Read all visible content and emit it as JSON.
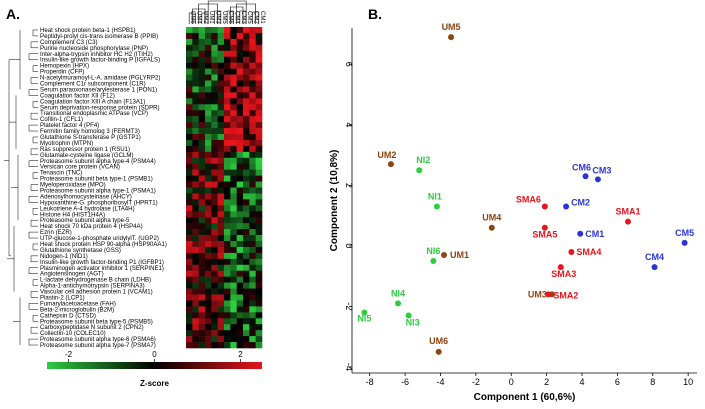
{
  "panel_a_label": "A.",
  "panel_b_label": "B.",
  "chart_data": [
    {
      "type": "heatmap",
      "panel": "A",
      "columns": [
        "UM6",
        "UM4",
        "UM2",
        "UM1",
        "UM3",
        "UM5",
        "CM6",
        "CM4",
        "CM3",
        "CM5",
        "CM2",
        "CM1"
      ],
      "rows": [
        "Heat shock protein beta-1 (HSPB1)",
        "Peptidyl-prolyl cis-trans isomerase B (PPIB)",
        "Complement C3 (C3)",
        "Purine nucleoside phosphorylase (PNP)",
        "Inter-alpha-trypsin inhibitor HC H2 (ITIH2)",
        "Insulin-like growth factor-binding P (IGFALS)",
        "Hemopexin (HPX)",
        "Properdin (CFP)",
        "N-acetylmuramoyl-L-A. amidase (PGLYRP2)",
        "Complement C1r subcomponent (C1R)",
        "Serum paraoxonase/arylesterase 1 (PON1)",
        "Coagulation factor XII (F12)",
        "Coagulation factor XIII A chain (F13A1)",
        "Serum deprivation-response protein (SDPR)",
        "Transitional endoplasmic ATPase (VCP)",
        "Cofilin-1 (CFL1)",
        "Platelet factor 4 (PF4)",
        "Fermitin family homolog 3 (FERMT3)",
        "Glutathione S-transferase P (GSTP1)",
        "Myotrophin (MTPN)",
        "Ras suppressor protein 1 (RSU1)",
        "Glutamate-cysteine ligase (GCLM)",
        "Proteasome subunit alpha type-4 (PSMA4)",
        "Versican core protein (VCAN)",
        "Tenascin (TNC)",
        "Proteasome subunit beta type-1 (PSMB1)",
        "Myeloperoxidase (MPO)",
        "Proteasome subunit alpha type-1 (PSMA1)",
        "Adenosylhomocysteinase (AHCY)",
        "Hypoxanthine-G. phosphoribosylT (HPRT1)",
        "Leukotriene A-4 hydrolase (LTA4H)",
        "Histone H4 (HIST1H4A)",
        "Proteasome subunit alpha type-5",
        "Heat shock 70 kDa protein 4 (HSP4A)",
        "Ezrin (EZR)",
        "UTP-glucose-1-phosphate uridylylT. (UGP2)",
        "Heat shock protein HSP 90-alpha (HSP90AA1)",
        "Glutathione synthetase (GSS)",
        "Nidogen-1 (NID1)",
        "Insulin-like growth factor-binding P1 (IGFBP1)",
        "Plasminogen activator inhibitor 1 (SERPINE1)",
        "Angiotensinogen (AGT)",
        "L-lactate dehydrogenase B chain (LDHB)",
        "Alpha-1-antichymotrypsin (SERPINA3)",
        "Vascular cell adhesion protein 1 (VCAM1)",
        "Plastin-2 (LCP1)",
        "Fumarylacetoacetase (FAH)",
        "Beta-2-microglobulin (B2M)",
        "Cathepsin D (CTSD)",
        "Proteasome subunit beta type-5 (PSMB5)",
        "Carboxypeptidase N subunit 2 (CPN2)",
        "Collectin-10 (COLEC10)",
        "Proteasome subunit alpha type-6 (PSMA6)",
        "Proteasome subunit alpha type-7 (PSMA7)"
      ],
      "colorbar": {
        "label": "Z-score",
        "ticks": [
          "-2",
          "0",
          "2"
        ],
        "range": [
          -2.5,
          2.5
        ],
        "low_color": "#2ecc40",
        "mid_color": "#000000",
        "high_color": "#e8141c"
      }
    },
    {
      "type": "scatter",
      "panel": "B",
      "xlabel": "Component 1 (60,6%)",
      "ylabel": "Component 2 (10,8%)",
      "xlim": [
        -9,
        10.5
      ],
      "ylim": [
        -4.2,
        7.2
      ],
      "xticks": [
        -8,
        -6,
        -4,
        -2,
        0,
        2,
        4,
        6,
        8,
        10
      ],
      "yticks": [
        -4,
        -2,
        0,
        2,
        4,
        6
      ],
      "series": [
        {
          "color": "#8b4513",
          "points": [
            {
              "label": "UM5",
              "x": -3.4,
              "y": 6.9
            },
            {
              "label": "UM2",
              "x": -6.8,
              "y": 2.7
            },
            {
              "label": "UM4",
              "x": -1.1,
              "y": 0.6
            },
            {
              "label": "UM1",
              "x": -3.8,
              "y": -0.3
            },
            {
              "label": "UM3",
              "x": 2.3,
              "y": -1.6
            },
            {
              "label": "UM6",
              "x": -4.1,
              "y": -3.5
            }
          ]
        },
        {
          "color": "#2ecc40",
          "points": [
            {
              "label": "NI2",
              "x": -5.2,
              "y": 2.5
            },
            {
              "label": "NI1",
              "x": -4.2,
              "y": 1.3
            },
            {
              "label": "NI6",
              "x": -4.4,
              "y": -0.5
            },
            {
              "label": "NI4",
              "x": -6.4,
              "y": -1.9
            },
            {
              "label": "NI5",
              "x": -8.3,
              "y": -2.2
            },
            {
              "label": "NI3",
              "x": -5.8,
              "y": -2.3
            }
          ]
        },
        {
          "color": "#e8141c",
          "points": [
            {
              "label": "SMA6",
              "x": 1.9,
              "y": 1.3
            },
            {
              "label": "SMA5",
              "x": 1.9,
              "y": 0.6
            },
            {
              "label": "SMA1",
              "x": 6.6,
              "y": 0.8
            },
            {
              "label": "SMA4",
              "x": 3.4,
              "y": -0.2
            },
            {
              "label": "SMA3",
              "x": 2.8,
              "y": -0.7
            },
            {
              "label": "SMA2",
              "x": 2.1,
              "y": -1.6
            }
          ]
        },
        {
          "color": "#2b35d6",
          "points": [
            {
              "label": "CM6",
              "x": 4.2,
              "y": 2.3
            },
            {
              "label": "CM3",
              "x": 4.9,
              "y": 2.2
            },
            {
              "label": "CM2",
              "x": 3.1,
              "y": 1.3
            },
            {
              "label": "CM1",
              "x": 3.9,
              "y": 0.4
            },
            {
              "label": "CM5",
              "x": 9.8,
              "y": 0.1
            },
            {
              "label": "CM4",
              "x": 8.1,
              "y": -0.7
            }
          ]
        }
      ]
    }
  ]
}
